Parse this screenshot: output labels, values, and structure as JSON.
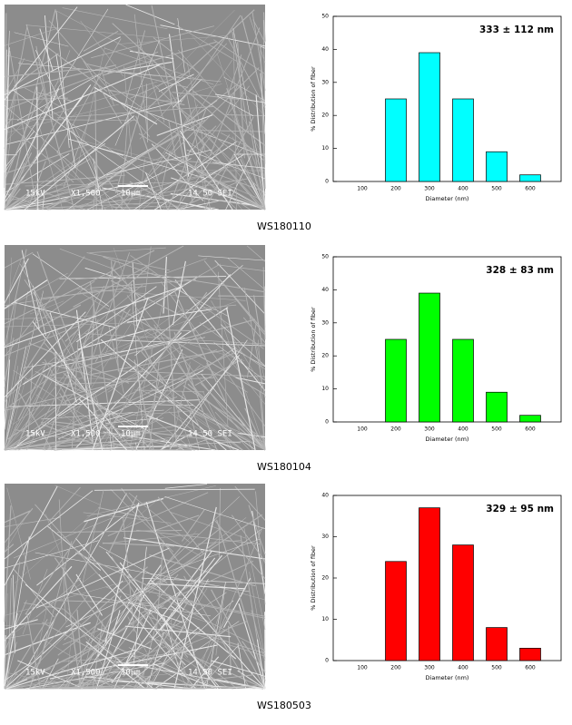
{
  "chart_data": [
    {
      "type": "bar",
      "annotation": "333 ± 112 nm",
      "x_label": "Diameter (nm)",
      "y_label": "% Distribution of fiber",
      "categories": [
        "100",
        "200",
        "300",
        "400",
        "500",
        "600"
      ],
      "values": [
        0,
        25,
        39,
        25,
        9,
        2
      ],
      "color": "#00ffff",
      "ylim": [
        0,
        50
      ],
      "yticks": [
        0,
        10,
        20,
        30,
        40,
        50
      ]
    },
    {
      "type": "bar",
      "annotation": "328 ± 83 nm",
      "x_label": "Diameter (nm)",
      "y_label": "% Distribution of fiber",
      "categories": [
        "100",
        "200",
        "300",
        "400",
        "500",
        "600"
      ],
      "values": [
        0,
        25,
        39,
        25,
        9,
        2
      ],
      "color": "#00ff00",
      "ylim": [
        0,
        50
      ],
      "yticks": [
        0,
        10,
        20,
        30,
        40,
        50
      ]
    },
    {
      "type": "bar",
      "annotation": "329 ± 95 nm",
      "x_label": "Diameter (nm)",
      "y_label": "% Distribution of fiber",
      "categories": [
        "100",
        "200",
        "300",
        "400",
        "500",
        "600"
      ],
      "values": [
        0,
        24,
        37,
        28,
        8,
        3
      ],
      "color": "#ff0000",
      "ylim": [
        0,
        40
      ],
      "yticks": [
        0,
        10,
        20,
        30,
        40
      ]
    }
  ],
  "images": [
    {
      "caption": "WS180110",
      "overlay": [
        "15kV",
        "X1,500",
        "10μm",
        "14 50 SEI"
      ]
    },
    {
      "caption": "WS180104",
      "overlay": [
        "15kV",
        "X1,500",
        "10μm",
        "14 50 SEI"
      ]
    },
    {
      "caption": "WS180503",
      "overlay": [
        "15kV",
        "X1,500",
        "10μm",
        "14 50 SEI"
      ]
    }
  ]
}
